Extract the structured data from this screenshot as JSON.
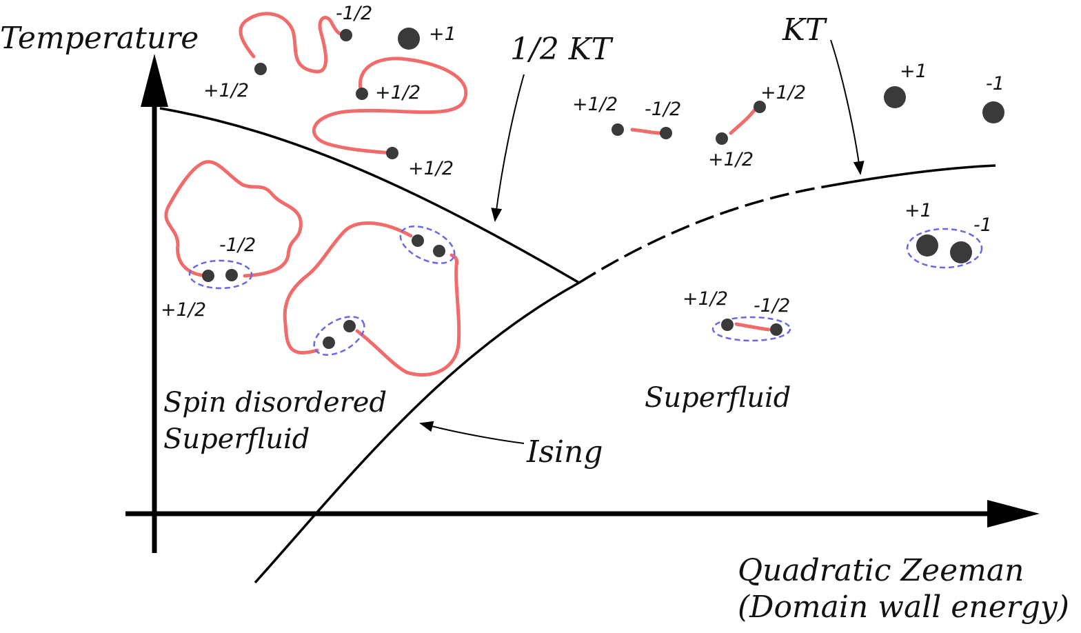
{
  "axes": {
    "y_label": "Temperature",
    "x_label_line1": "Quadratic Zeeman",
    "x_label_line2": "(Domain wall energy)"
  },
  "transitions": {
    "half_kt": "1/2 KT",
    "kt": "KT",
    "ising": "Ising"
  },
  "phases": {
    "spin_disordered_line1": "Spin disordered",
    "spin_disordered_line2": "Superfluid",
    "superfluid": "Superfluid"
  },
  "charges": {
    "top_left_a": "+1/2",
    "top_left_b": "-1/2",
    "top_left_c": "+1",
    "top_left_d": "+1/2",
    "top_left_e": "+1/2",
    "top_mid_a": "+1/2",
    "top_mid_b": "-1/2",
    "top_mid_c": "+1/2",
    "top_mid_d": "+1/2",
    "top_right_a": "+1",
    "top_right_b": "-1",
    "low_left_a": "-1/2",
    "low_left_b": "+1/2",
    "low_mid_a": "+1/2",
    "low_mid_b": "-1/2",
    "low_right_a": "+1",
    "low_right_b": "-1"
  },
  "colors": {
    "domain_wall": "#f26b6b",
    "pair_ring": "#6666ee",
    "vortex": "#3a3a3a"
  }
}
